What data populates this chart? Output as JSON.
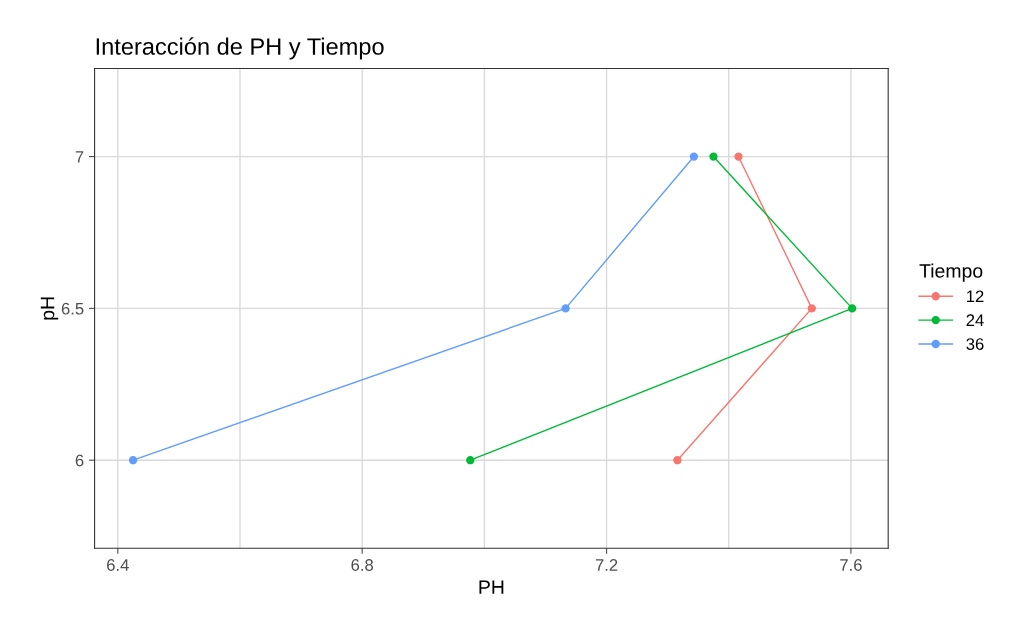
{
  "chart_data": {
    "type": "line",
    "title": "Interacción de PH y Tiempo",
    "xlabel": "PH",
    "ylabel": "pH",
    "legend_title": "Tiempo",
    "legend": "right",
    "grid": true,
    "marker": "circle",
    "line_style": "solid",
    "xlim": [
      6.362,
      7.661
    ],
    "ylim": [
      5.71,
      7.29
    ],
    "xticks": [
      6.4,
      {
        "value": 6.6,
        "label": null
      },
      6.8,
      {
        "value": 7.0,
        "label": null
      },
      7.2,
      {
        "value": 7.4,
        "label": null
      },
      7.6
    ],
    "yticks": [
      6,
      6.5,
      7
    ],
    "series": [
      {
        "name": "12",
        "color": "#f8766d",
        "x": [
          7.316,
          7.536,
          7.416
        ],
        "values": [
          6.0,
          6.5,
          7.0
        ]
      },
      {
        "name": "24",
        "color": "#00ba38",
        "x": [
          6.977,
          7.602,
          7.375
        ],
        "values": [
          6.0,
          6.5,
          7.0
        ]
      },
      {
        "name": "36",
        "color": "#619cff",
        "x": [
          6.425,
          7.133,
          7.343
        ],
        "values": [
          6.0,
          6.5,
          7.0
        ]
      }
    ]
  }
}
